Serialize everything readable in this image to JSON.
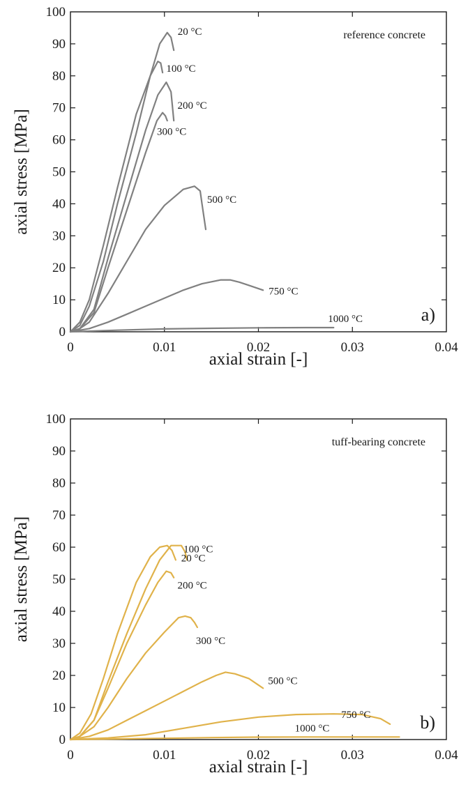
{
  "chart_data": [
    {
      "type": "line",
      "panel_label": "a)",
      "annotation": "reference concrete",
      "xlabel": "axial strain [-]",
      "ylabel": "axial stress [MPa]",
      "xlim": [
        0,
        0.04
      ],
      "ylim": [
        0,
        100
      ],
      "x_ticks": [
        "0",
        "0.01",
        "0.02",
        "0.03",
        "0.04"
      ],
      "y_ticks": [
        "0",
        "10",
        "20",
        "30",
        "40",
        "50",
        "60",
        "70",
        "80",
        "90",
        "100"
      ],
      "grid": false,
      "color": "#808080",
      "series": [
        {
          "label": "20 °C",
          "points": [
            [
              0,
              0
            ],
            [
              0.001,
              2
            ],
            [
              0.002,
              8
            ],
            [
              0.0035,
              22
            ],
            [
              0.005,
              40
            ],
            [
              0.007,
              62
            ],
            [
              0.0085,
              80
            ],
            [
              0.0095,
              90
            ],
            [
              0.0103,
              93.5
            ],
            [
              0.0107,
              92
            ],
            [
              0.011,
              88
            ]
          ]
        },
        {
          "label": "100 °C",
          "points": [
            [
              0,
              0
            ],
            [
              0.001,
              3
            ],
            [
              0.002,
              10
            ],
            [
              0.0035,
              27
            ],
            [
              0.005,
              45
            ],
            [
              0.007,
              68
            ],
            [
              0.0085,
              80
            ],
            [
              0.0093,
              84.5
            ],
            [
              0.0096,
              84
            ],
            [
              0.0098,
              81
            ]
          ]
        },
        {
          "label": "200 °C",
          "points": [
            [
              0,
              0
            ],
            [
              0.001,
              1
            ],
            [
              0.0025,
              7
            ],
            [
              0.004,
              23
            ],
            [
              0.006,
              43
            ],
            [
              0.008,
              63
            ],
            [
              0.0093,
              74
            ],
            [
              0.0102,
              78
            ],
            [
              0.0107,
              75
            ],
            [
              0.011,
              66
            ]
          ]
        },
        {
          "label": "300 °C",
          "points": [
            [
              0,
              0
            ],
            [
              0.001,
              1
            ],
            [
              0.0025,
              6
            ],
            [
              0.004,
              20
            ],
            [
              0.006,
              38
            ],
            [
              0.008,
              56
            ],
            [
              0.0092,
              66
            ],
            [
              0.0098,
              68.5
            ],
            [
              0.0101,
              67.5
            ],
            [
              0.0103,
              66
            ]
          ]
        },
        {
          "label": "500 °C",
          "points": [
            [
              0,
              0
            ],
            [
              0.001,
              1
            ],
            [
              0.002,
              3
            ],
            [
              0.004,
              12
            ],
            [
              0.006,
              22
            ],
            [
              0.008,
              32
            ],
            [
              0.01,
              39.5
            ],
            [
              0.012,
              44.5
            ],
            [
              0.0132,
              45.5
            ],
            [
              0.0138,
              44
            ],
            [
              0.014,
              40
            ],
            [
              0.0142,
              36
            ],
            [
              0.0144,
              32
            ]
          ]
        },
        {
          "label": "750 °C",
          "points": [
            [
              0,
              0
            ],
            [
              0.002,
              1
            ],
            [
              0.004,
              3
            ],
            [
              0.006,
              5.5
            ],
            [
              0.008,
              8
            ],
            [
              0.01,
              10.5
            ],
            [
              0.012,
              13
            ],
            [
              0.014,
              15
            ],
            [
              0.016,
              16.2
            ],
            [
              0.017,
              16.2
            ],
            [
              0.018,
              15.5
            ],
            [
              0.019,
              14.5
            ],
            [
              0.0205,
              13
            ]
          ]
        },
        {
          "label": "1000 °C",
          "points": [
            [
              0,
              0
            ],
            [
              0.005,
              0.5
            ],
            [
              0.01,
              0.9
            ],
            [
              0.015,
              1.1
            ],
            [
              0.02,
              1.25
            ],
            [
              0.025,
              1.3
            ],
            [
              0.028,
              1.3
            ]
          ]
        }
      ]
    },
    {
      "type": "line",
      "panel_label": "b)",
      "annotation": "tuff-bearing concrete",
      "xlabel": "axial strain [-]",
      "ylabel": "axial stress [MPa]",
      "xlim": [
        0,
        0.04
      ],
      "ylim": [
        0,
        100
      ],
      "x_ticks": [
        "0",
        "0.01",
        "0.02",
        "0.03",
        "0.04"
      ],
      "y_ticks": [
        "0",
        "10",
        "20",
        "30",
        "40",
        "50",
        "60",
        "70",
        "80",
        "90",
        "100"
      ],
      "grid": false,
      "color": "#e0b24a",
      "series": [
        {
          "label": "100 °C",
          "points": [
            [
              0,
              0
            ],
            [
              0.001,
              1
            ],
            [
              0.0025,
              6
            ],
            [
              0.004,
              18
            ],
            [
              0.006,
              33
            ],
            [
              0.008,
              47
            ],
            [
              0.0095,
              56
            ],
            [
              0.0107,
              60.5
            ],
            [
              0.0118,
              60.5
            ],
            [
              0.0122,
              58.5
            ],
            [
              0.0124,
              56
            ]
          ]
        },
        {
          "label": "20 °C",
          "points": [
            [
              0,
              0
            ],
            [
              0.001,
              2
            ],
            [
              0.0022,
              8
            ],
            [
              0.0035,
              19
            ],
            [
              0.005,
              33
            ],
            [
              0.007,
              49
            ],
            [
              0.0085,
              57
            ],
            [
              0.0095,
              60
            ],
            [
              0.0103,
              60.5
            ],
            [
              0.0108,
              59
            ],
            [
              0.0112,
              56
            ]
          ]
        },
        {
          "label": "200 °C",
          "points": [
            [
              0,
              0
            ],
            [
              0.001,
              1
            ],
            [
              0.0025,
              6
            ],
            [
              0.004,
              16
            ],
            [
              0.006,
              30
            ],
            [
              0.008,
              42
            ],
            [
              0.0093,
              49
            ],
            [
              0.0102,
              52.5
            ],
            [
              0.0107,
              52
            ],
            [
              0.011,
              50.5
            ]
          ]
        },
        {
          "label": "300 °C",
          "points": [
            [
              0,
              0
            ],
            [
              0.001,
              1
            ],
            [
              0.0025,
              4
            ],
            [
              0.004,
              10
            ],
            [
              0.006,
              19
            ],
            [
              0.008,
              27
            ],
            [
              0.01,
              33.5
            ],
            [
              0.0115,
              38
            ],
            [
              0.0122,
              38.5
            ],
            [
              0.0128,
              38
            ],
            [
              0.0132,
              36.5
            ],
            [
              0.0135,
              35
            ]
          ]
        },
        {
          "label": "500 °C",
          "points": [
            [
              0,
              0
            ],
            [
              0.002,
              1
            ],
            [
              0.004,
              3
            ],
            [
              0.006,
              6
            ],
            [
              0.008,
              9
            ],
            [
              0.01,
              12
            ],
            [
              0.012,
              15
            ],
            [
              0.014,
              18
            ],
            [
              0.0155,
              20
            ],
            [
              0.0165,
              21
            ],
            [
              0.0175,
              20.5
            ],
            [
              0.019,
              19
            ],
            [
              0.02,
              17
            ],
            [
              0.0205,
              16
            ]
          ]
        },
        {
          "label": "750 °C",
          "points": [
            [
              0,
              0
            ],
            [
              0.004,
              0.5
            ],
            [
              0.008,
              1.5
            ],
            [
              0.012,
              3.5
            ],
            [
              0.016,
              5.5
            ],
            [
              0.02,
              7
            ],
            [
              0.024,
              7.8
            ],
            [
              0.028,
              8
            ],
            [
              0.031,
              7.8
            ],
            [
              0.033,
              6.5
            ],
            [
              0.034,
              4.8
            ]
          ]
        },
        {
          "label": "1000 °C",
          "points": [
            [
              0,
              0
            ],
            [
              0.005,
              0.2
            ],
            [
              0.01,
              0.4
            ],
            [
              0.015,
              0.6
            ],
            [
              0.02,
              0.75
            ],
            [
              0.025,
              0.8
            ],
            [
              0.03,
              0.8
            ],
            [
              0.035,
              0.8
            ]
          ]
        }
      ]
    }
  ]
}
